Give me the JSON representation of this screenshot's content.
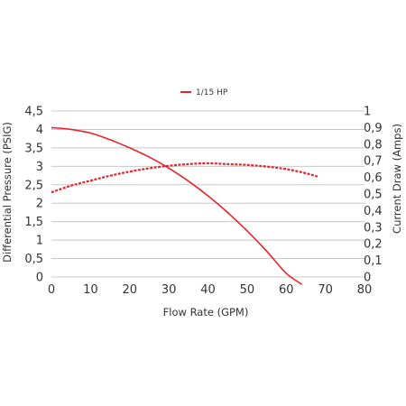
{
  "chart_data": {
    "type": "line",
    "xlabel": "Flow Rate (GPM)",
    "ylabel_left": "Differential Pressure (PSIG)",
    "ylabel_right": "Current Draw (Amps)",
    "xlim": [
      0,
      80
    ],
    "ylim_left": [
      0,
      4.5
    ],
    "ylim_right": [
      0,
      1
    ],
    "x_ticks": [
      "0",
      "10",
      "20",
      "30",
      "40",
      "50",
      "60",
      "70",
      "80"
    ],
    "y_left_ticks": [
      "0",
      "0,5",
      "1",
      "1,5",
      "2",
      "2,5",
      "3",
      "3,5",
      "4",
      "4,5"
    ],
    "y_right_ticks": [
      "0",
      "0,1",
      "0,2",
      "0,3",
      "0,4",
      "0,5",
      "0,6",
      "0,7",
      "0,8",
      "0,9",
      "1"
    ],
    "grid": true,
    "legend": {
      "position": "top-center",
      "entries": [
        "1/15 HP"
      ]
    },
    "series": [
      {
        "name": "1/15 HP",
        "axis": "left",
        "style": "solid",
        "color": "#e8232a",
        "x": [
          0,
          5,
          10,
          15,
          20,
          25,
          30,
          35,
          40,
          45,
          50,
          55,
          60,
          64
        ],
        "y": [
          4.05,
          4.0,
          3.9,
          3.72,
          3.5,
          3.25,
          2.95,
          2.6,
          2.2,
          1.75,
          1.25,
          0.7,
          0.1,
          -0.2
        ]
      },
      {
        "name": "",
        "axis": "right",
        "style": "dashed",
        "color": "#e8232a",
        "x": [
          0,
          5,
          10,
          15,
          20,
          25,
          30,
          35,
          40,
          45,
          50,
          55,
          60,
          65,
          68
        ],
        "y": [
          0.51,
          0.55,
          0.58,
          0.61,
          0.635,
          0.655,
          0.67,
          0.68,
          0.685,
          0.68,
          0.675,
          0.665,
          0.65,
          0.625,
          0.605
        ]
      }
    ]
  }
}
